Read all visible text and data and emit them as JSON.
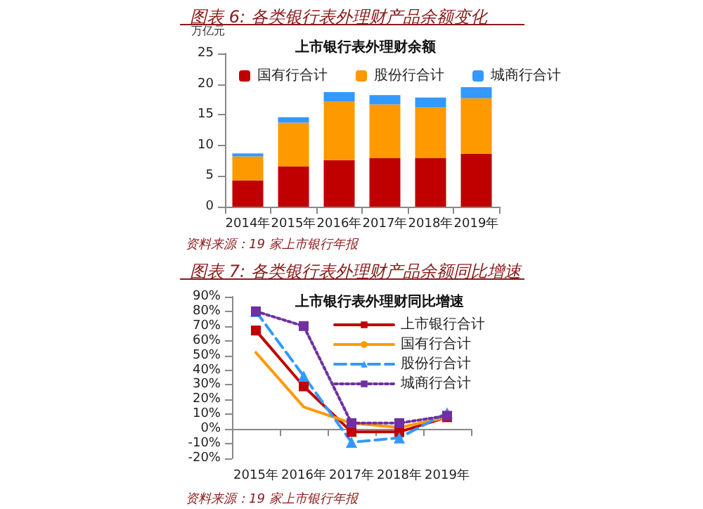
{
  "chart_data": [
    {
      "type": "bar",
      "title": "图表 6: 各类银行表外理财产品余额变化",
      "subtitle": "上市银行表外理财余额",
      "ylabel": "万亿元",
      "stacked": true,
      "legend": "top",
      "categories": [
        "2014年",
        "2015年",
        "2016年",
        "2017年",
        "2018年",
        "2019年"
      ],
      "series": [
        {
          "name": "国有行合计",
          "color": "#c00000",
          "values": [
            4.3,
            6.6,
            7.6,
            7.9,
            7.9,
            8.6
          ]
        },
        {
          "name": "股份行合计",
          "color": "#ff9900",
          "values": [
            3.9,
            7.1,
            9.6,
            8.8,
            8.3,
            9.1
          ]
        },
        {
          "name": "城商行合计",
          "color": "#3399ff",
          "values": [
            0.5,
            0.9,
            1.5,
            1.5,
            1.6,
            1.8
          ]
        }
      ],
      "ylim": [
        0,
        25
      ],
      "yticks": [
        0,
        5,
        10,
        15,
        20,
        25
      ],
      "annotations": [
        "资料来源：19 家上市银行年报"
      ]
    },
    {
      "type": "line",
      "title": "图表 7: 各类银行表外理财产品余额同比增速",
      "subtitle": "上市银行表外理财同比增速",
      "legend": "top right",
      "categories": [
        "2015年",
        "2016年",
        "2017年",
        "2018年",
        "2019年"
      ],
      "series": [
        {
          "name": "上市银行合计",
          "color": "#c00000",
          "marker": "square",
          "line_style": "solid",
          "values": [
            67,
            29,
            -2,
            -2,
            8
          ]
        },
        {
          "name": "国有行合计",
          "color": "#ff9900",
          "marker": "none",
          "line_style": "solid",
          "values": [
            52,
            15,
            4,
            1,
            8
          ]
        },
        {
          "name": "股份行合计",
          "color": "#3399ff",
          "marker": "triangle",
          "line_style": "dashed",
          "values": [
            80,
            36,
            -9,
            -6,
            11
          ]
        },
        {
          "name": "城商行合计",
          "color": "#7030a0",
          "marker": "square",
          "line_style": "dotted",
          "values": [
            80,
            70,
            4,
            4,
            9
          ]
        }
      ],
      "ylim": [
        -20,
        90
      ],
      "yticks": [
        {
          "value": -20,
          "label": "-20%"
        },
        {
          "value": -10,
          "label": "-10%"
        },
        {
          "value": 0,
          "label": "0%"
        },
        {
          "value": 10,
          "label": "10%"
        },
        {
          "value": 20,
          "label": "20%"
        },
        {
          "value": 30,
          "label": "30%"
        },
        {
          "value": 40,
          "label": "40%"
        },
        {
          "value": 50,
          "label": "50%"
        },
        {
          "value": 60,
          "label": "60%"
        },
        {
          "value": 70,
          "label": "70%"
        },
        {
          "value": 80,
          "label": "80%"
        },
        {
          "value": 90,
          "label": "90%"
        }
      ],
      "annotations": [
        "资料来源：19 家上市银行年报"
      ]
    }
  ]
}
